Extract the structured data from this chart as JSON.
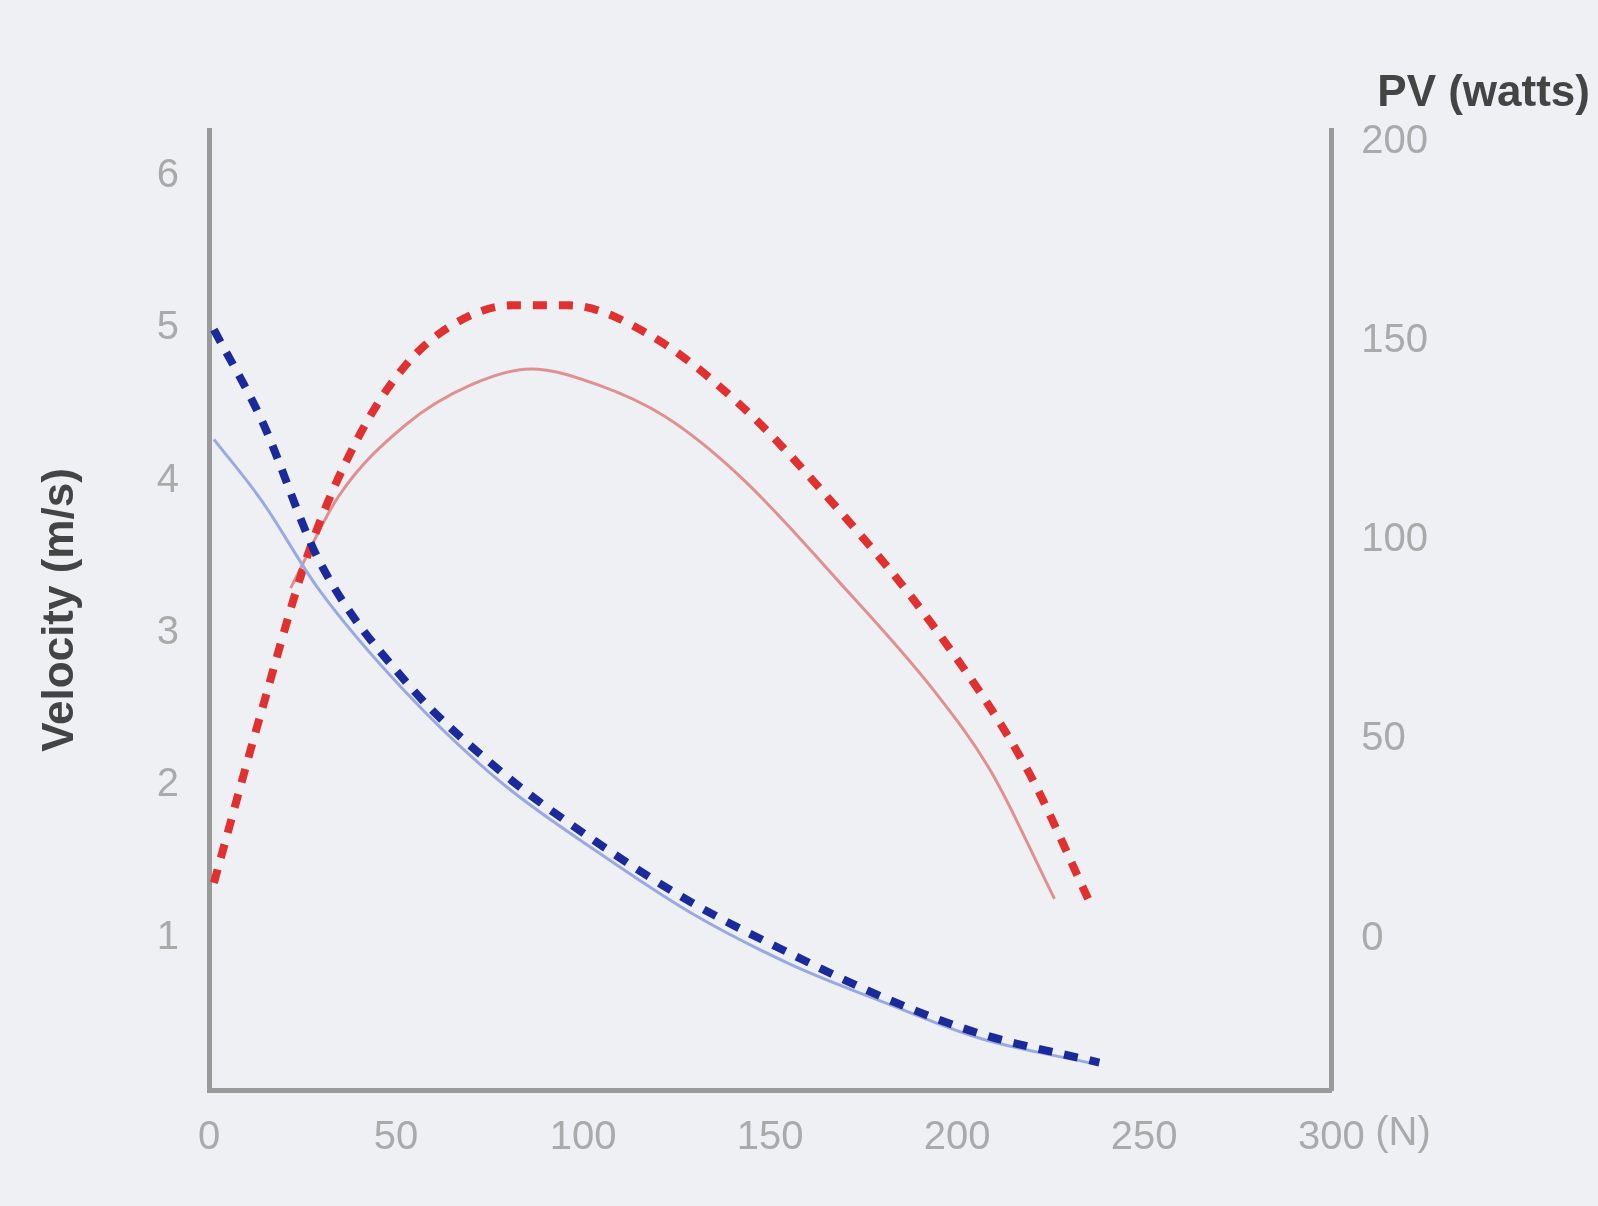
{
  "chart_data": {
    "type": "line",
    "xlabel": "(N)",
    "ylabel": "Velocity (m/s)",
    "y2label": "PV (watts)",
    "xlim": [
      0,
      300
    ],
    "xticks": [
      0,
      50,
      100,
      150,
      200,
      250,
      300
    ],
    "ylim": [
      0,
      6.3
    ],
    "yticks": [
      1,
      2,
      3,
      4,
      5,
      6
    ],
    "y2lim": [
      -38,
      203
    ],
    "y2ticks": [
      0,
      50,
      100,
      150,
      200
    ],
    "grid": false,
    "legend": false,
    "marker": "none",
    "series": [
      {
        "color": "#1a2a9a",
        "line_style": "dashed",
        "x": [
          1.3,
          14,
          29.5,
          52.6,
          78,
          104,
          129,
          155,
          181,
          206,
          238
        ],
        "values": [
          4.99,
          4.4,
          3.47,
          2.68,
          2.09,
          1.62,
          1.23,
          0.9,
          0.6,
          0.37,
          0.18
        ]
      },
      {
        "color": "#9aaae0",
        "line_style": "solid",
        "x": [
          1.3,
          14,
          29.5,
          52.6,
          78,
          104,
          129,
          155,
          181,
          206,
          237
        ],
        "values": [
          4.27,
          3.87,
          3.28,
          2.61,
          2.02,
          1.56,
          1.16,
          0.83,
          0.57,
          0.34,
          0.17
        ]
      },
      {
        "color": "#e03030",
        "line_style": "dashed",
        "axis": "y2",
        "x": [
          1.3,
          14,
          27,
          40,
          52.6,
          65,
          81,
          96,
          117,
          142,
          168,
          194,
          219,
          235
        ],
        "values": [
          14,
          57,
          98,
          126,
          144,
          154,
          159,
          159,
          152,
          134,
          108,
          78,
          42,
          10
        ]
      },
      {
        "color": "#e09090",
        "line_style": "solid",
        "axis": "y2",
        "x": [
          21.8,
          34.6,
          52.6,
          70,
          86,
          104,
          122,
          142,
          168,
          194,
          209,
          226
        ],
        "values": [
          88,
          111,
          129,
          139,
          143,
          139,
          131,
          116,
          90,
          62,
          42,
          10
        ]
      }
    ]
  }
}
